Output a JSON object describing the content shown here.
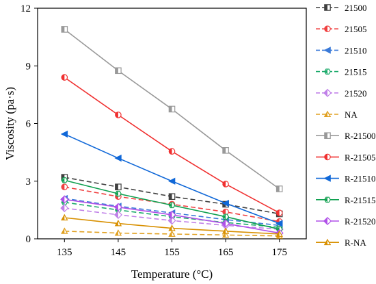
{
  "chart_data": {
    "type": "line",
    "title": "",
    "xlabel": "Temperature (°C)",
    "ylabel": "Viscosity (pa·s)",
    "x": [
      135,
      145,
      155,
      165,
      175
    ],
    "xticks": [
      "135",
      "145",
      "155",
      "165",
      "175"
    ],
    "ylim": [
      0,
      12
    ],
    "yticks": [
      "0",
      "3",
      "6",
      "9",
      "12"
    ],
    "grid": false,
    "legend_position": "right",
    "series": [
      {
        "name": "21500",
        "color": "#404040",
        "dash": true,
        "marker": "square",
        "values": [
          3.2,
          2.7,
          2.2,
          1.8,
          1.3
        ]
      },
      {
        "name": "21505",
        "color": "#f04040",
        "dash": true,
        "marker": "circle",
        "values": [
          2.7,
          2.2,
          1.8,
          1.4,
          0.9
        ]
      },
      {
        "name": "21510",
        "color": "#3a7ad8",
        "dash": true,
        "marker": "triangle-left",
        "values": [
          2.1,
          1.7,
          1.35,
          1.0,
          0.7
        ]
      },
      {
        "name": "21515",
        "color": "#1aaa6a",
        "dash": true,
        "marker": "hexagon",
        "values": [
          1.9,
          1.5,
          1.15,
          0.85,
          0.6
        ]
      },
      {
        "name": "21520",
        "color": "#c080e8",
        "dash": true,
        "marker": "diamond",
        "values": [
          1.6,
          1.25,
          0.95,
          0.7,
          0.5
        ]
      },
      {
        "name": "NA",
        "color": "#e0a020",
        "dash": true,
        "marker": "triangle",
        "values": [
          0.4,
          0.3,
          0.25,
          0.2,
          0.15
        ]
      },
      {
        "name": "R-21500",
        "color": "#999999",
        "dash": false,
        "marker": "square",
        "values": [
          10.9,
          8.75,
          6.75,
          4.6,
          2.6
        ]
      },
      {
        "name": "R-21505",
        "color": "#f03030",
        "dash": false,
        "marker": "circle",
        "values": [
          8.4,
          6.45,
          4.55,
          2.85,
          1.35
        ]
      },
      {
        "name": "R-21510",
        "color": "#1068d8",
        "dash": false,
        "marker": "triangle-left",
        "values": [
          5.45,
          4.2,
          3.0,
          1.85,
          0.8
        ]
      },
      {
        "name": "R-21515",
        "color": "#10a050",
        "dash": false,
        "marker": "hexagon",
        "values": [
          3.05,
          2.35,
          1.75,
          1.15,
          0.5
        ]
      },
      {
        "name": "R-21520",
        "color": "#b050e8",
        "dash": false,
        "marker": "diamond",
        "values": [
          2.05,
          1.65,
          1.25,
          0.8,
          0.3
        ]
      },
      {
        "name": "R-NA",
        "color": "#d89000",
        "dash": false,
        "marker": "triangle",
        "values": [
          1.1,
          0.8,
          0.55,
          0.4,
          0.25
        ]
      }
    ]
  }
}
